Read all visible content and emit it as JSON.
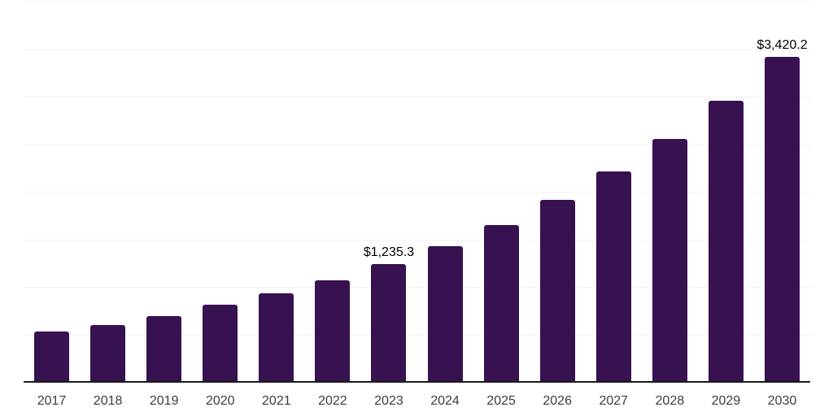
{
  "chart_data": {
    "type": "bar",
    "title": "",
    "xlabel": "",
    "ylabel": "",
    "categories": [
      "2017",
      "2018",
      "2019",
      "2020",
      "2021",
      "2022",
      "2023",
      "2024",
      "2025",
      "2026",
      "2027",
      "2028",
      "2029",
      "2030"
    ],
    "values": [
      530,
      595,
      690,
      815,
      930,
      1065,
      1235.3,
      1429,
      1650,
      1911,
      2210,
      2556,
      2956,
      3420.2
    ],
    "data_labels": [
      "",
      "",
      "",
      "",
      "",
      "",
      "$1,235.3",
      "",
      "",
      "",
      "",
      "",
      "",
      "$3,420.2"
    ],
    "ylim": [
      0,
      4000
    ],
    "gridline_step": 500,
    "grid": "on",
    "legend": "none",
    "colors": {
      "bar": "#371150",
      "gridline": "#f2f2f2",
      "axis_line": "#1a1a1a",
      "tick_label": "#3d3d3d",
      "data_label": "#000000",
      "background": "#ffffff"
    }
  }
}
